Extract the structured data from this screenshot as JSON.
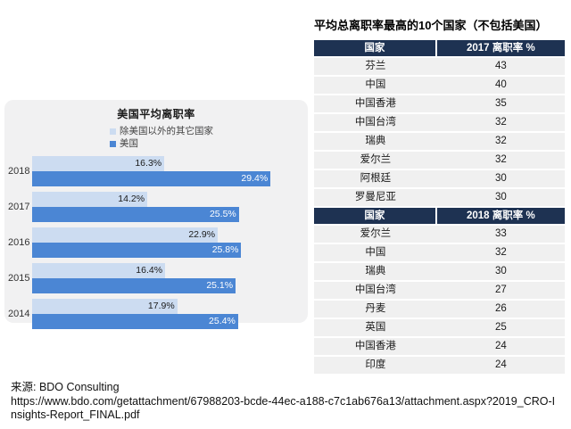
{
  "colors": {
    "panel_gray": "#f1f1f2",
    "light_blue": "#ccdcf1",
    "dark_blue": "#4b86d4",
    "header_navy": "#1e3252",
    "row_gray": "#f0f0f0"
  },
  "chart": {
    "title": "美国平均离职率",
    "legend": [
      {
        "label": "除美国以外的其它国家",
        "color": "#ccdcf1"
      },
      {
        "label": "美国",
        "color": "#4b86d4"
      }
    ]
  },
  "chart_data": {
    "type": "bar",
    "orientation": "horizontal",
    "title": "美国平均离职率",
    "categories": [
      "2018",
      "2017",
      "2016",
      "2015",
      "2014"
    ],
    "series": [
      {
        "name": "除美国以外的其它国家",
        "values": [
          16.3,
          14.2,
          22.9,
          16.4,
          17.9
        ]
      },
      {
        "name": "美国",
        "values": [
          29.4,
          25.5,
          25.8,
          25.1,
          25.4
        ]
      }
    ],
    "value_suffix": "%",
    "xlim": [
      0,
      34
    ],
    "grid": false,
    "legend_position": "top-center"
  },
  "table": {
    "title": "平均总离职率最高的10个国家（不包括美国）",
    "sections": [
      {
        "headers": [
          "国家",
          "2017 离职率 %"
        ],
        "rows": [
          [
            "芬兰",
            "43"
          ],
          [
            "中国",
            "40"
          ],
          [
            "中国香港",
            "35"
          ],
          [
            "中国台湾",
            "32"
          ],
          [
            "瑞典",
            "32"
          ],
          [
            "爱尔兰",
            "32"
          ],
          [
            "阿根廷",
            "30"
          ],
          [
            "罗曼尼亚",
            "30"
          ]
        ]
      },
      {
        "headers": [
          "国家",
          "2018 离职率 %"
        ],
        "rows": [
          [
            "爱尔兰",
            "33"
          ],
          [
            "中国",
            "32"
          ],
          [
            "瑞典",
            "30"
          ],
          [
            "中国台湾",
            "27"
          ],
          [
            "丹麦",
            "26"
          ],
          [
            "英国",
            "25"
          ],
          [
            "中国香港",
            "24"
          ],
          [
            "印度",
            "24"
          ]
        ]
      }
    ]
  },
  "footer": {
    "source_label": "来源: BDO Consulting",
    "url": "https://www.bdo.com/getattachment/67988203-bcde-44ec-a188-c7c1ab676a13/attachment.aspx?2019_CRO-Insights-Report_FINAL.pdf"
  }
}
